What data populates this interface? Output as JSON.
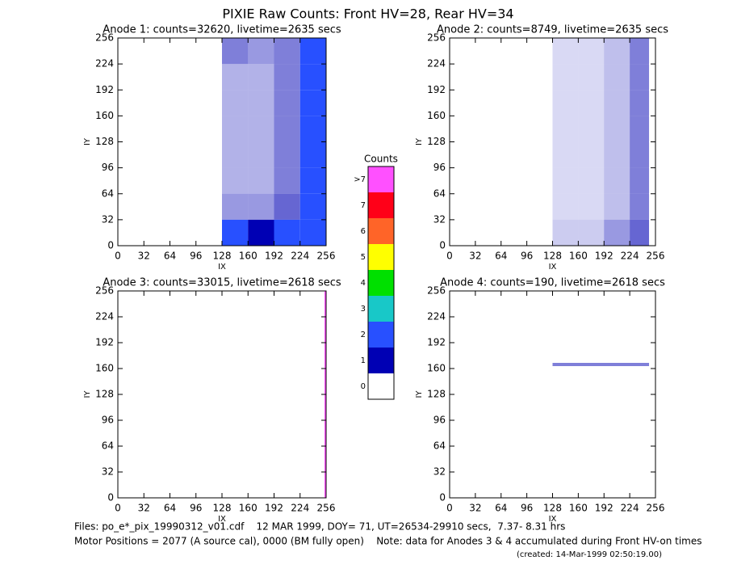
{
  "title": "PIXIE Raw Counts:  Front HV=28, Rear HV=34",
  "chart_data": [
    {
      "type": "heatmap",
      "title": "Anode 1: counts=32620, livetime=2635 secs",
      "xlabel": "IX",
      "ylabel": "IY",
      "xlim": [
        0,
        256
      ],
      "ylim": [
        0,
        256
      ],
      "xticks": [
        0,
        32,
        64,
        96,
        128,
        160,
        192,
        224,
        256
      ],
      "yticks": [
        0,
        32,
        64,
        96,
        128,
        160,
        192,
        224,
        256
      ],
      "x": [
        0,
        32,
        64,
        96,
        128,
        160,
        192,
        224,
        256
      ],
      "y": [
        0,
        32,
        64,
        96,
        128,
        160,
        192,
        224,
        256
      ],
      "z": [
        [
          0,
          0,
          0,
          0,
          1.2,
          1.0,
          1.2,
          2.0
        ],
        [
          0,
          0,
          0,
          0,
          0.4,
          0.4,
          0.6,
          1.6
        ],
        [
          0,
          0,
          0,
          0,
          0.3,
          0.3,
          0.5,
          1.6
        ],
        [
          0,
          0,
          0,
          0,
          0.3,
          0.3,
          0.5,
          1.6
        ],
        [
          0,
          0,
          0,
          0,
          0.3,
          0.3,
          0.5,
          1.6
        ],
        [
          0,
          0,
          0,
          0,
          0.3,
          0.3,
          0.5,
          1.6
        ],
        [
          0,
          0,
          0,
          0,
          0.3,
          0.3,
          0.5,
          1.6
        ],
        [
          0,
          0,
          0,
          0,
          0.5,
          0.4,
          0.5,
          1.5
        ]
      ]
    },
    {
      "type": "heatmap",
      "title": "Anode 2: counts=8749, livetime=2635 secs",
      "xlabel": "IX",
      "ylabel": "IY",
      "xlim": [
        0,
        256
      ],
      "ylim": [
        0,
        256
      ],
      "xticks": [
        0,
        32,
        64,
        96,
        128,
        160,
        192,
        224,
        256
      ],
      "yticks": [
        0,
        32,
        64,
        96,
        128,
        160,
        192,
        224,
        256
      ],
      "x": [
        0,
        32,
        64,
        96,
        128,
        160,
        192,
        224,
        248
      ],
      "y": [
        0,
        32,
        64,
        96,
        128,
        160,
        192,
        224,
        256
      ],
      "z": [
        [
          0,
          0,
          0,
          0,
          0.2,
          0.2,
          0.4,
          0.6
        ],
        [
          0,
          0,
          0,
          0,
          0.15,
          0.15,
          0.25,
          0.5
        ],
        [
          0,
          0,
          0,
          0,
          0.15,
          0.15,
          0.25,
          0.5
        ],
        [
          0,
          0,
          0,
          0,
          0.15,
          0.15,
          0.25,
          0.5
        ],
        [
          0,
          0,
          0,
          0,
          0.15,
          0.15,
          0.25,
          0.5
        ],
        [
          0,
          0,
          0,
          0,
          0.15,
          0.15,
          0.25,
          0.5
        ],
        [
          0,
          0,
          0,
          0,
          0.15,
          0.15,
          0.25,
          0.5
        ],
        [
          0,
          0,
          0,
          0,
          0.15,
          0.15,
          0.25,
          0.5
        ]
      ]
    },
    {
      "type": "heatmap",
      "title": "Anode 3: counts=33015, livetime=2618 secs",
      "xlabel": "IX",
      "ylabel": "IY",
      "xlim": [
        0,
        256
      ],
      "ylim": [
        0,
        256
      ],
      "xticks": [
        0,
        32,
        64,
        96,
        128,
        160,
        192,
        224,
        256
      ],
      "yticks": [
        0,
        32,
        64,
        96,
        128,
        160,
        192,
        224,
        256
      ],
      "x": [
        0,
        254,
        256
      ],
      "y": [
        0,
        256
      ],
      "z": [
        [
          0,
          8
        ]
      ]
    },
    {
      "type": "heatmap",
      "title": "Anode 4: counts=190, livetime=2618 secs",
      "xlabel": "IX",
      "ylabel": "IY",
      "xlim": [
        0,
        256
      ],
      "ylim": [
        0,
        256
      ],
      "xticks": [
        0,
        32,
        64,
        96,
        128,
        160,
        192,
        224,
        256
      ],
      "yticks": [
        0,
        32,
        64,
        96,
        128,
        160,
        192,
        224,
        256
      ],
      "x": [
        0,
        128,
        248,
        256
      ],
      "y": [
        0,
        163,
        167,
        256
      ],
      "z": [
        [
          0,
          0,
          0
        ],
        [
          0,
          0.5,
          0
        ],
        [
          0,
          0,
          0
        ]
      ]
    }
  ],
  "colorbar": {
    "title": "Counts",
    "labels": [
      "0",
      "1",
      "2",
      "3",
      "4",
      "5",
      "6",
      "7",
      ">7"
    ],
    "colors": [
      "#ffffff",
      "#0000b4",
      "#2850ff",
      "#18c8c8",
      "#00e000",
      "#ffff00",
      "#ff6428",
      "#ff0018",
      "#ff50ff"
    ]
  },
  "footer": [
    "Files: po_e*_pix_19990312_v01.cdf    12 MAR 1999, DOY= 71, UT=26534-29910 secs,  7.37- 8.31 hrs",
    "Motor Positions = 2077 (A source cal), 0000 (BM fully open)    Note: data for Anodes 3 & 4 accumulated during Front HV-on times",
    "(created: 14-Mar-1999 02:50:19.00)"
  ]
}
